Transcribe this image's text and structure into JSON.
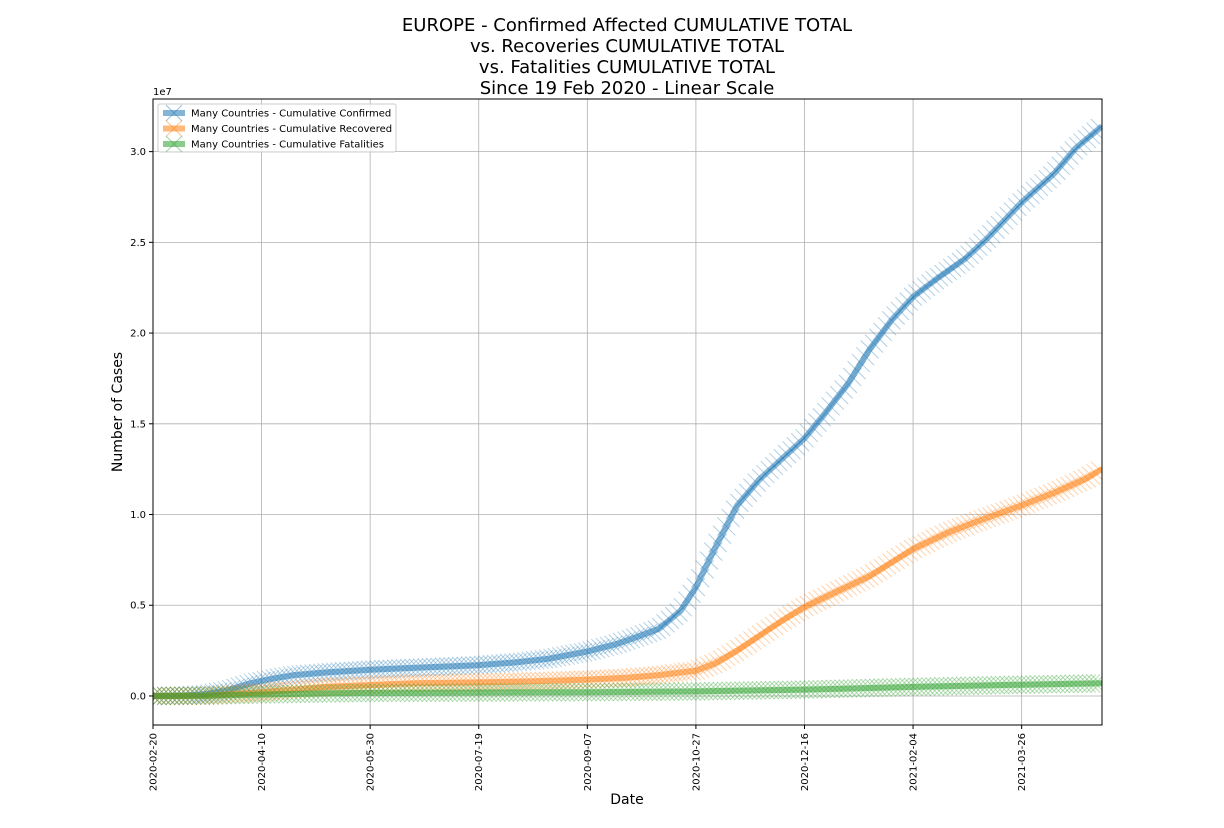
{
  "chart_data": {
    "type": "line",
    "title_lines": [
      "EUROPE - Confirmed Affected CUMULATIVE TOTAL",
      "vs. Recoveries CUMULATIVE TOTAL",
      "vs. Fatalities CUMULATIVE TOTAL",
      "Since 19 Feb 2020 - Linear Scale"
    ],
    "xlabel": "Date",
    "ylabel": "Number of Cases",
    "y_offset_label": "1e7",
    "x_range": [
      "2020-02-20",
      "2021-05-02"
    ],
    "ylim": [
      -0.16,
      3.29
    ],
    "y_scale_note": "values in units of 1e7",
    "x_ticks": [
      "2020-02-20",
      "2020-04-10",
      "2020-05-30",
      "2020-07-19",
      "2020-09-07",
      "2020-10-27",
      "2020-12-16",
      "2021-02-04",
      "2021-03-26"
    ],
    "y_ticks": [
      "0.0",
      "0.5",
      "1.0",
      "1.5",
      "2.0",
      "2.5",
      "3.0"
    ],
    "y_tick_values": [
      0,
      0.5,
      1.0,
      1.5,
      2.0,
      2.5,
      3.0
    ],
    "grid": true,
    "legend_position": "top-left",
    "marker": "x",
    "series": [
      {
        "name": "Many Countries - Cumulative Confirmed",
        "color": "#1f77b4",
        "points": [
          [
            "2020-02-20",
            0.0
          ],
          [
            "2020-03-05",
            0.002
          ],
          [
            "2020-03-15",
            0.01
          ],
          [
            "2020-03-25",
            0.03
          ],
          [
            "2020-04-05",
            0.07
          ],
          [
            "2020-04-15",
            0.095
          ],
          [
            "2020-04-25",
            0.115
          ],
          [
            "2020-05-10",
            0.13
          ],
          [
            "2020-05-30",
            0.145
          ],
          [
            "2020-06-20",
            0.155
          ],
          [
            "2020-07-10",
            0.165
          ],
          [
            "2020-07-19",
            0.17
          ],
          [
            "2020-08-05",
            0.185
          ],
          [
            "2020-08-20",
            0.205
          ],
          [
            "2020-09-07",
            0.245
          ],
          [
            "2020-09-20",
            0.285
          ],
          [
            "2020-10-01",
            0.33
          ],
          [
            "2020-10-10",
            0.37
          ],
          [
            "2020-10-20",
            0.47
          ],
          [
            "2020-10-27",
            0.6
          ],
          [
            "2020-11-05",
            0.82
          ],
          [
            "2020-11-15",
            1.05
          ],
          [
            "2020-11-25",
            1.19
          ],
          [
            "2020-12-05",
            1.3
          ],
          [
            "2020-12-16",
            1.42
          ],
          [
            "2020-12-25",
            1.55
          ],
          [
            "2021-01-05",
            1.72
          ],
          [
            "2021-01-15",
            1.91
          ],
          [
            "2021-01-25",
            2.07
          ],
          [
            "2021-02-04",
            2.2
          ],
          [
            "2021-02-15",
            2.3
          ],
          [
            "2021-02-28",
            2.41
          ],
          [
            "2021-03-10",
            2.52
          ],
          [
            "2021-03-26",
            2.72
          ],
          [
            "2021-04-10",
            2.88
          ],
          [
            "2021-04-20",
            3.02
          ],
          [
            "2021-05-02",
            3.14
          ]
        ]
      },
      {
        "name": "Many Countries - Cumulative Recovered",
        "color": "#ff7f0e",
        "points": [
          [
            "2020-02-20",
            0.0
          ],
          [
            "2020-03-15",
            0.001
          ],
          [
            "2020-04-10",
            0.02
          ],
          [
            "2020-04-25",
            0.035
          ],
          [
            "2020-05-10",
            0.05
          ],
          [
            "2020-05-30",
            0.06
          ],
          [
            "2020-06-20",
            0.07
          ],
          [
            "2020-07-19",
            0.075
          ],
          [
            "2020-08-10",
            0.08
          ],
          [
            "2020-09-07",
            0.09
          ],
          [
            "2020-09-25",
            0.1
          ],
          [
            "2020-10-10",
            0.115
          ],
          [
            "2020-10-27",
            0.14
          ],
          [
            "2020-11-05",
            0.18
          ],
          [
            "2020-11-15",
            0.25
          ],
          [
            "2020-11-25",
            0.33
          ],
          [
            "2020-12-05",
            0.41
          ],
          [
            "2020-12-16",
            0.49
          ],
          [
            "2020-12-30",
            0.57
          ],
          [
            "2021-01-15",
            0.66
          ],
          [
            "2021-02-04",
            0.81
          ],
          [
            "2021-02-20",
            0.9
          ],
          [
            "2021-03-05",
            0.96
          ],
          [
            "2021-03-26",
            1.05
          ],
          [
            "2021-04-10",
            1.12
          ],
          [
            "2021-04-25",
            1.2
          ],
          [
            "2021-05-02",
            1.25
          ]
        ]
      },
      {
        "name": "Many Countries - Cumulative Fatalities",
        "color": "#2ca02c",
        "points": [
          [
            "2020-02-20",
            0.0
          ],
          [
            "2020-03-15",
            0.001
          ],
          [
            "2020-04-10",
            0.008
          ],
          [
            "2020-05-10",
            0.014
          ],
          [
            "2020-05-30",
            0.017
          ],
          [
            "2020-07-19",
            0.019
          ],
          [
            "2020-09-07",
            0.021
          ],
          [
            "2020-10-27",
            0.025
          ],
          [
            "2020-12-16",
            0.035
          ],
          [
            "2021-02-04",
            0.05
          ],
          [
            "2021-03-26",
            0.062
          ],
          [
            "2021-05-02",
            0.07
          ]
        ]
      }
    ]
  }
}
